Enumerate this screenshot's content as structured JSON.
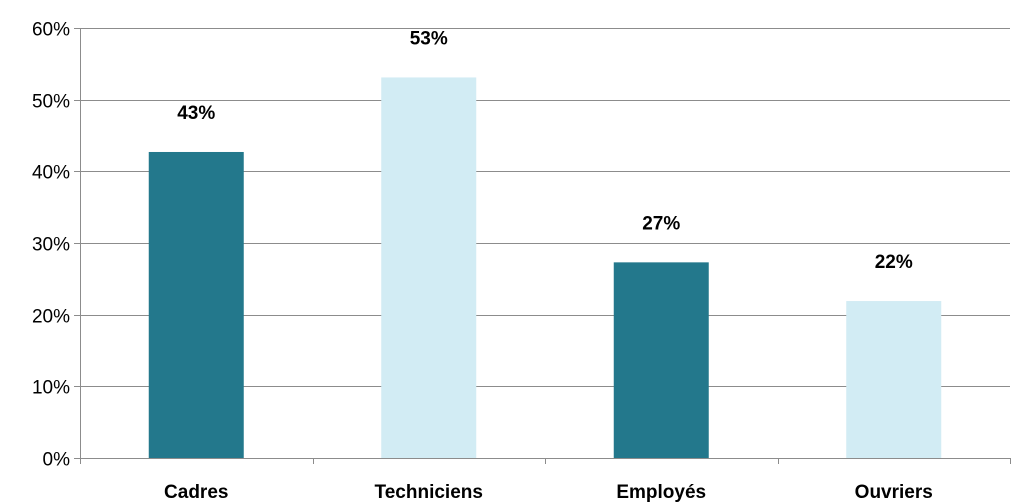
{
  "chart_data": {
    "type": "bar",
    "categories": [
      "Cadres",
      "Techniciens",
      "Employés",
      "Ouvriers"
    ],
    "values": [
      0.427,
      0.531,
      0.273,
      0.219
    ],
    "data_labels": [
      "43%",
      "53%",
      "27%",
      "22%"
    ],
    "title": "",
    "xlabel": "",
    "ylabel": "",
    "ylim": [
      0,
      0.6
    ],
    "yticks": [
      0,
      0.1,
      0.2,
      0.3,
      0.4,
      0.5,
      0.6
    ],
    "ytick_labels": [
      "0%",
      "10%",
      "20%",
      "30%",
      "40%",
      "50%",
      "60%"
    ],
    "grid": true,
    "legend": "none",
    "bar_colors": [
      "#23788c",
      "#d2ecf4",
      "#23788c",
      "#d2ecf4"
    ],
    "grid_color": "#8c8c8c",
    "axis_color": "#8c8c8c"
  }
}
